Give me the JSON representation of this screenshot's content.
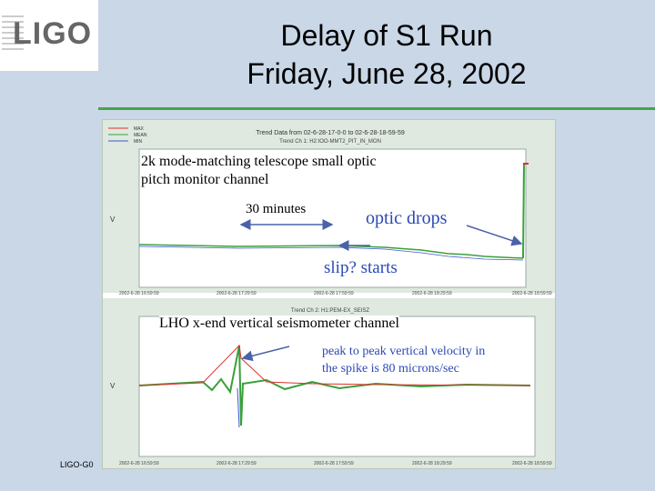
{
  "slide": {
    "title_line1": "Delay of S1 Run",
    "title_line2": "Friday, June 28, 2002",
    "footer": "LIGO-G0",
    "logo_text": "LIGO"
  },
  "top_chart": {
    "header": "Trend Data from 02-6-28-17-0-0 to 02-6-28-18-59-59",
    "subheader": "Trend Ch 1: H2:IOO-MMT2_PIT_IN_MON",
    "legend": [
      "MAX",
      "MEAN",
      "MIN"
    ],
    "y_label": "V",
    "x_ticks": [
      "2002-6-28 16:59:59",
      "2002-6-28 17:29:59",
      "2002-6-28 17:59:59",
      "2002-6-28 18:29:59",
      "2002-6-28 18:59:59"
    ]
  },
  "bottom_chart": {
    "subheader": "Trend Ch 2: H1:PEM-EX_SEISZ",
    "y_label": "V",
    "x_ticks": [
      "2002-6-28 16:59:59",
      "2002-6-28 17:29:59",
      "2002-6-28 17:59:59",
      "2002-6-28 18:29:59",
      "2002-6-28 18:59:59"
    ]
  },
  "annotations": {
    "top_label": "2k mode-matching telescope small optic\npitch monitor channel",
    "duration": "30 minutes",
    "optic_drops": "optic drops",
    "slip": "slip? starts",
    "bottom_label": "LHO x-end vertical seismometer channel",
    "peak_note": "peak to peak vertical velocity in\nthe spike is 80 microns/sec"
  },
  "colors": {
    "max": "#e03030",
    "mean": "#3aa03a",
    "min": "#3a5bd0",
    "arrow": "#4a63a8"
  }
}
